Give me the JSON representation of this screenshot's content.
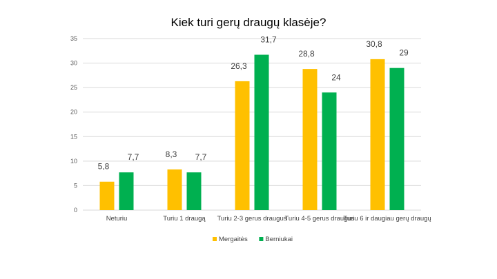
{
  "chart_data": {
    "type": "bar",
    "title": "Kiek turi gerų draugų klasėje?",
    "categories": [
      "Neturiu",
      "Turiu 1 draugą",
      "Turiu 2-3 gerus draugus",
      "Turiu 4-5 gerus draugus",
      "Turiu 6 ir daugiau gerų draugų"
    ],
    "series": [
      {
        "name": "Mergaitės",
        "color": "#ffc000",
        "values": [
          5.8,
          8.3,
          26.3,
          28.8,
          30.8
        ],
        "labels": [
          "5,8",
          "8,3",
          "26,3",
          "28,8",
          "30,8"
        ]
      },
      {
        "name": "Berniukai",
        "color": "#00b050",
        "values": [
          7.7,
          7.7,
          31.7,
          24,
          29
        ],
        "labels": [
          "7,7",
          "7,7",
          "31,7",
          "24",
          "29"
        ]
      }
    ],
    "ylim": [
      0,
      35
    ],
    "yticks": [
      0,
      5,
      10,
      15,
      20,
      25,
      30,
      35
    ],
    "grid": true,
    "legend": "bottom"
  }
}
